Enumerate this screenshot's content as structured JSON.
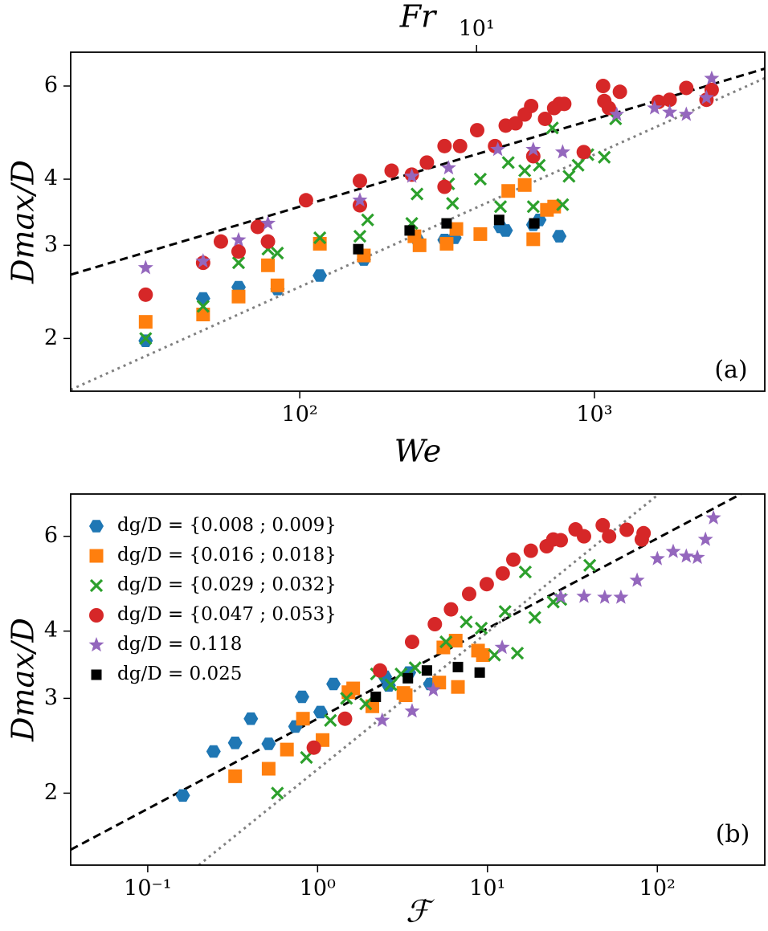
{
  "chart_data": [
    {
      "type": "scatter",
      "xlabel": "We",
      "ylabel": "Dmax/D",
      "x2label": "Fr",
      "annotation": "(a)",
      "log_x": true,
      "log_y": true,
      "xlim": [
        16.7,
        3785
      ],
      "ylim": [
        1.59,
        6.95
      ],
      "x2lim": [
        0.42,
        95
      ],
      "xticks": [
        {
          "value": 100,
          "label": "10²"
        },
        {
          "value": 1000,
          "label": "10³"
        }
      ],
      "x2ticks": [
        {
          "value": 10,
          "label": "10¹"
        }
      ],
      "yticks": [
        2,
        3,
        4,
        6
      ],
      "series": [
        {
          "color": "#1f77b4",
          "marker": "hexagon",
          "x": [
            30,
            47,
            62,
            84,
            117,
            165,
            250,
            310,
            335,
            480,
            500,
            620,
            650,
            760
          ],
          "values": [
            1.98,
            2.38,
            2.5,
            2.48,
            2.63,
            2.82,
            3.08,
            3.07,
            3.1,
            3.25,
            3.2,
            3.28,
            3.35,
            3.12
          ]
        },
        {
          "color": "#ff7f0e",
          "marker": "square",
          "x": [
            30,
            47,
            62,
            78,
            84,
            117,
            165,
            245,
            255,
            315,
            340,
            410,
            510,
            580,
            620,
            690,
            730
          ],
          "values": [
            2.15,
            2.22,
            2.4,
            2.75,
            2.52,
            3.02,
            2.87,
            3.12,
            3.0,
            3.02,
            3.22,
            3.15,
            3.8,
            3.9,
            3.08,
            3.5,
            3.55
          ]
        },
        {
          "color": "#2ca02c",
          "marker": "x",
          "x": [
            30,
            47,
            62,
            78,
            84,
            117,
            160,
            170,
            240,
            250,
            320,
            330,
            410,
            480,
            510,
            580,
            620,
            650,
            720,
            780,
            820,
            880,
            950,
            1080,
            1180
          ],
          "values": [
            2.0,
            2.3,
            2.78,
            2.95,
            2.9,
            3.1,
            3.12,
            3.35,
            3.3,
            3.75,
            3.92,
            3.6,
            4.0,
            3.55,
            4.3,
            4.15,
            3.55,
            4.25,
            5.0,
            3.58,
            4.05,
            4.25,
            4.45,
            4.4,
            5.2
          ]
        },
        {
          "color": "#d62728",
          "marker": "circle",
          "x": [
            30,
            47,
            54,
            62,
            72,
            78,
            105,
            160,
            160,
            205,
            240,
            270,
            310,
            310,
            350,
            400,
            460,
            500,
            540,
            580,
            610,
            620,
            680,
            730,
            760,
            790,
            920,
            1070,
            1080,
            1120,
            1220,
            1650,
            1800,
            2050,
            2400,
            2500
          ],
          "values": [
            2.42,
            2.78,
            3.05,
            2.92,
            3.25,
            3.05,
            3.65,
            3.97,
            3.57,
            4.15,
            4.08,
            4.3,
            4.62,
            3.87,
            4.62,
            4.95,
            4.62,
            5.05,
            5.1,
            5.3,
            5.5,
            4.42,
            5.2,
            5.45,
            5.55,
            5.55,
            4.5,
            6.0,
            5.62,
            5.45,
            5.85,
            5.6,
            5.65,
            5.95,
            5.65,
            5.9
          ]
        },
        {
          "color": "#9467bd",
          "marker": "star",
          "x": [
            30,
            47,
            62,
            78,
            160,
            240,
            320,
            470,
            620,
            780,
            1190,
            1600,
            1800,
            2050,
            2400,
            2500
          ],
          "values": [
            2.72,
            2.8,
            3.07,
            3.3,
            3.65,
            4.05,
            4.2,
            4.55,
            4.55,
            4.5,
            5.3,
            5.45,
            5.35,
            5.3,
            5.7,
            6.2
          ]
        },
        {
          "color": "#000000",
          "marker": "smallsquare",
          "x": [
            158,
            236,
            315,
            475,
            625
          ],
          "values": [
            2.95,
            3.2,
            3.3,
            3.35,
            3.3
          ]
        }
      ],
      "lines": [
        {
          "style": "dashed",
          "color": "#000000",
          "x": [
            16.7,
            3785
          ],
          "y": [
            2.64,
            6.47
          ]
        },
        {
          "style": "dotted",
          "color": "#808080",
          "x": [
            16.7,
            3785
          ],
          "y": [
            1.6,
            6.21
          ]
        }
      ]
    },
    {
      "type": "scatter",
      "xlabel": "ℱ",
      "ylabel": "Dmax/D",
      "annotation": "(b)",
      "log_x": true,
      "log_y": true,
      "legend": "upper left",
      "xlim": [
        0.0352,
        429
      ],
      "ylim": [
        1.47,
        7.19
      ],
      "xticks": [
        {
          "value": 0.1,
          "label": "10⁻¹"
        },
        {
          "value": 1,
          "label": "10⁰"
        },
        {
          "value": 10,
          "label": "10¹"
        },
        {
          "value": 100,
          "label": "10²"
        }
      ],
      "yticks": [
        2,
        3,
        4,
        6
      ],
      "series": [
        {
          "name": "dg/D = {0.008 ; 0.009}",
          "color": "#1f77b4",
          "marker": "hexagon",
          "x": [
            0.161,
            0.244,
            0.327,
            0.405,
            0.515,
            0.74,
            0.81,
            1.04,
            1.24,
            1.6,
            2.49,
            2.62,
            3.45,
            4.6,
            4.8
          ],
          "values": [
            1.98,
            2.39,
            2.48,
            2.75,
            2.47,
            2.66,
            3.02,
            2.83,
            3.19,
            3.13,
            3.29,
            3.17,
            3.35,
            3.19,
            3.18
          ]
        },
        {
          "name": "dg/D = {0.016 ; 0.018}",
          "color": "#ff7f0e",
          "marker": "square",
          "x": [
            0.327,
            0.515,
            0.66,
            0.82,
            1.07,
            1.52,
            1.62,
            2.1,
            3.2,
            3.3,
            5.2,
            5.5,
            6.5,
            6.7,
            8.8,
            9.4
          ],
          "values": [
            2.15,
            2.22,
            2.41,
            2.75,
            2.51,
            3.08,
            3.13,
            2.9,
            3.07,
            3.04,
            3.21,
            3.73,
            3.84,
            3.15,
            3.68,
            3.61
          ]
        },
        {
          "name": "dg/D = {0.029 ; 0.032}",
          "color": "#2ca02c",
          "marker": "x",
          "x": [
            0.58,
            0.86,
            1.19,
            1.48,
            1.92,
            2.22,
            2.7,
            3.1,
            3.75,
            5.7,
            7.5,
            9.2,
            11,
            12.7,
            15,
            16.7,
            19,
            24.4,
            27,
            40
          ],
          "values": [
            2.0,
            2.33,
            2.73,
            3.0,
            2.93,
            3.33,
            3.18,
            3.33,
            3.42,
            3.82,
            4.16,
            4.05,
            3.61,
            4.35,
            3.64,
            5.15,
            4.24,
            4.53,
            4.58,
            5.3
          ]
        },
        {
          "name": "dg/D = {0.047 ; 0.053}",
          "color": "#d62728",
          "marker": "circle",
          "x": [
            0.95,
            1.45,
            2.33,
            3.6,
            4.9,
            6.1,
            7.8,
            9.9,
            12.3,
            14.2,
            18,
            22.3,
            24.4,
            27,
            33,
            37,
            47.7,
            52,
            66,
            81,
            83
          ],
          "values": [
            2.43,
            2.75,
            3.38,
            3.82,
            4.12,
            4.39,
            4.69,
            4.89,
            5.12,
            5.43,
            5.64,
            5.75,
            5.92,
            5.9,
            6.18,
            6.0,
            6.29,
            6.0,
            6.17,
            5.92,
            6.08
          ]
        },
        {
          "name": "dg/D = 0.118",
          "color": "#9467bd",
          "marker": "star",
          "x": [
            2.4,
            3.6,
            4.8,
            12.2,
            27,
            37,
            49,
            61,
            76,
            100,
            124,
            148,
            172,
            192,
            214
          ],
          "values": [
            2.73,
            2.84,
            3.11,
            3.73,
            4.63,
            4.64,
            4.62,
            4.62,
            4.97,
            5.45,
            5.62,
            5.51,
            5.48,
            5.92,
            6.49
          ]
        },
        {
          "name": "dg/D = 0.025",
          "color": "#000000",
          "marker": "smallsquare",
          "x": [
            2.2,
            3.4,
            4.4,
            6.7,
            9.0
          ],
          "values": [
            3.02,
            3.27,
            3.38,
            3.43,
            3.35
          ]
        }
      ],
      "lines": [
        {
          "style": "dashed",
          "color": "#000000",
          "x": [
            0.0352,
            310
          ],
          "y": [
            1.57,
            7.19
          ]
        },
        {
          "style": "dotted",
          "color": "#808080",
          "x": [
            0.2,
            102
          ],
          "y": [
            1.47,
            7.19
          ]
        }
      ]
    }
  ]
}
